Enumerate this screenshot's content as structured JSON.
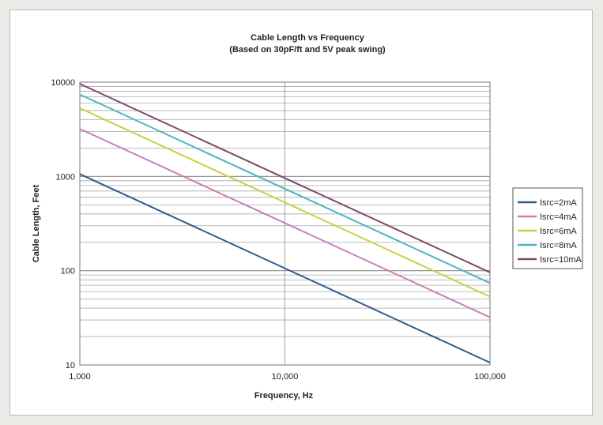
{
  "chart_data": {
    "type": "line",
    "title": "Cable Length vs Frequency",
    "subtitle": "(Based on 30pF/ft and 5V peak swing)",
    "xlabel": "Frequency, Hz",
    "ylabel": "Cable Length, Feet",
    "x_scale": "log",
    "y_scale": "log",
    "xlim": [
      1000,
      100000
    ],
    "ylim": [
      10,
      10000
    ],
    "x_ticks": [
      1000,
      10000,
      100000
    ],
    "x_tick_labels": [
      "1,000",
      "10,000",
      "100,000"
    ],
    "y_ticks": [
      10,
      100,
      1000,
      10000
    ],
    "y_tick_labels": [
      "10",
      "100",
      "1000",
      "10000"
    ],
    "grid": true,
    "legend_position": "right",
    "x": [
      1000,
      100000
    ],
    "series": [
      {
        "name": "Isrc=2mA",
        "color": "#2e5d8c",
        "values": [
          1060,
          10.6
        ]
      },
      {
        "name": "Isrc=4mA",
        "color": "#c97fb8",
        "values": [
          3200,
          32
        ]
      },
      {
        "name": "Isrc=6mA",
        "color": "#c8d143",
        "values": [
          5300,
          53
        ]
      },
      {
        "name": "Isrc=8mA",
        "color": "#4ab5c3",
        "values": [
          7400,
          74
        ]
      },
      {
        "name": "Isrc=10mA",
        "color": "#7e4a6c",
        "values": [
          9600,
          96
        ]
      }
    ]
  }
}
